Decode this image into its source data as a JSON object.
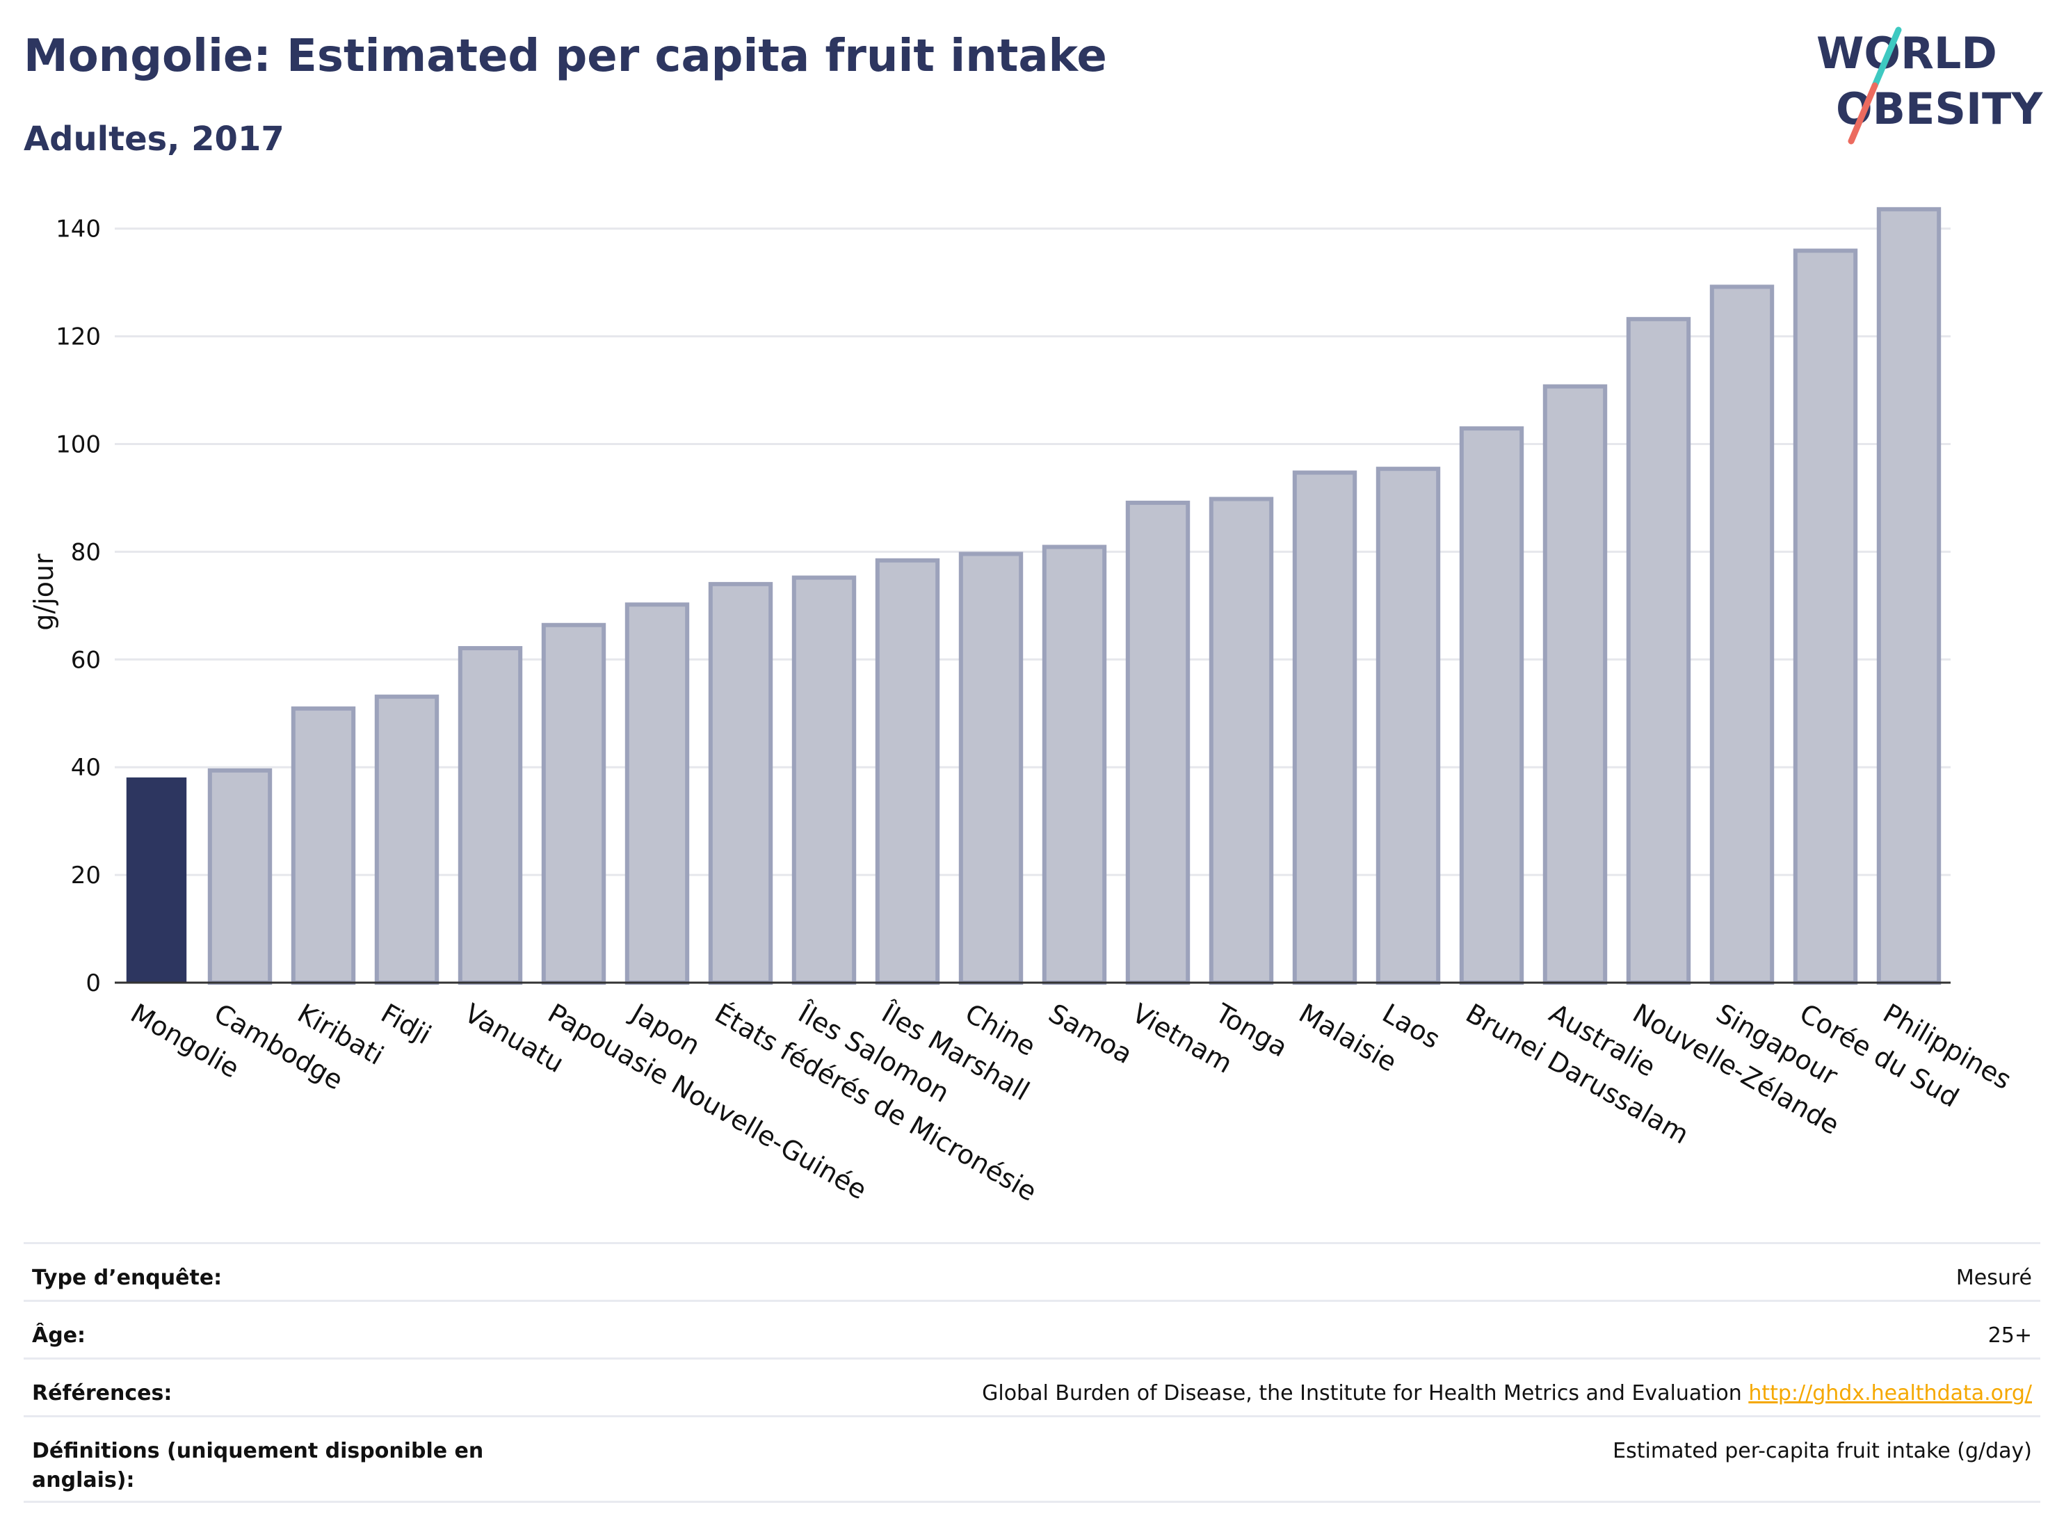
{
  "header": {
    "title": "Mongolie: Estimated per capita fruit intake",
    "subtitle": "Adultes, 2017"
  },
  "logo": {
    "line1": "WORLD",
    "line2": "OBESITY",
    "slash_colors": [
      "#3ec9c1",
      "#ec6b5f"
    ]
  },
  "colors": {
    "highlight_bar": "#2d3660",
    "other_bar_fill": "#bfc2cf",
    "other_bar_stroke": "#9ca2bb",
    "text": "#2d3660",
    "link": "#f5a800"
  },
  "chart_data": {
    "type": "bar",
    "title": "Mongolie: Estimated per capita fruit intake",
    "subtitle": "Adultes, 2017",
    "ylabel": "g/jour",
    "xlabel": "",
    "ylim": [
      0,
      145
    ],
    "yticks": [
      0,
      20,
      40,
      60,
      80,
      100,
      120,
      140
    ],
    "grid": true,
    "highlight": "Mongolie",
    "categories": [
      "Mongolie",
      "Cambodge",
      "Kiribati",
      "Fidji",
      "Vanuatu",
      "Papouasie Nouvelle-Guinée",
      "Japon",
      "États fédérés de Micronésie",
      "Îles Salomon",
      "Îles Marshall",
      "Chine",
      "Samoa",
      "Vietnam",
      "Tonga",
      "Malaisie",
      "Laos",
      "Brunei Darussalam",
      "Australie",
      "Nouvelle-Zélande",
      "Singapour",
      "Corée du Sud",
      "Philippines"
    ],
    "values": [
      38.1,
      39.4,
      50.9,
      53.1,
      62.1,
      66.4,
      70.2,
      74.0,
      75.2,
      78.4,
      79.6,
      80.9,
      89.1,
      89.8,
      94.7,
      95.4,
      102.9,
      110.7,
      123.2,
      129.2,
      135.9,
      143.6
    ]
  },
  "info": {
    "rows": [
      {
        "label": "Type d’enquête:",
        "value": "Mesuré"
      },
      {
        "label": "Âge:",
        "value": "25+"
      },
      {
        "label": "Références:",
        "value": "Global Burden of Disease, the Institute for Health Metrics and Evaluation",
        "link": "http://ghdx.healthdata.org/"
      },
      {
        "label": "Définitions (uniquement disponible en anglais):",
        "value": "Estimated per-capita fruit intake (g/day)"
      }
    ]
  }
}
